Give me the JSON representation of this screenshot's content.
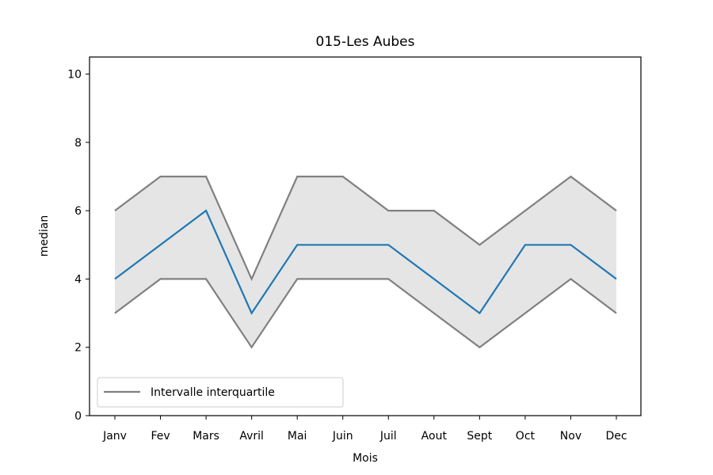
{
  "chart_data": {
    "type": "line",
    "title": "015-Les Aubes",
    "xlabel": "Mois",
    "ylabel": "median",
    "categories": [
      "Janv",
      "Fev",
      "Mars",
      "Avril",
      "Mai",
      "Juin",
      "Juil",
      "Aout",
      "Sept",
      "Oct",
      "Nov",
      "Dec"
    ],
    "series": [
      {
        "values": [
          4,
          5,
          6,
          3,
          5,
          5,
          5,
          4,
          3,
          5,
          5,
          4
        ],
        "color": "#1f77b4"
      },
      {
        "name": "Intervalle interquartile",
        "values": [
          6,
          7,
          7,
          4,
          7,
          7,
          6,
          6,
          5,
          6,
          7,
          6
        ],
        "color": "#808080"
      },
      {
        "values": [
          3,
          4,
          4,
          2,
          4,
          4,
          4,
          3,
          2,
          3,
          4,
          3
        ],
        "color": "#808080"
      }
    ],
    "band_fill_color": "#e5e5e5",
    "ylim": [
      0,
      10.5
    ],
    "yticks": [
      0,
      2,
      4,
      6,
      8,
      10
    ],
    "grid": false,
    "legend": {
      "position": "lower-left",
      "entries": [
        "Intervalle interquartile"
      ]
    }
  }
}
